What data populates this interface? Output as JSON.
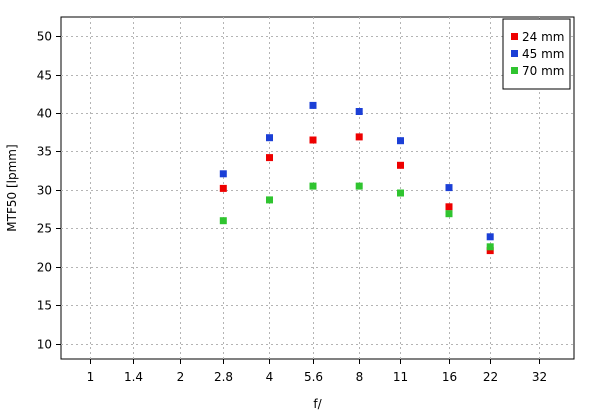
{
  "chart_data": {
    "type": "scatter",
    "title": "",
    "xlabel": "f/",
    "ylabel": "MTF50 [lpmm]",
    "x_scale": "log",
    "x_ticks": [
      "1",
      "1.4",
      "2",
      "2.8",
      "4",
      "5.6",
      "8",
      "11",
      "16",
      "22",
      "32"
    ],
    "x_tick_values": [
      1,
      1.4,
      2,
      2.8,
      4,
      5.6,
      8,
      11,
      16,
      22,
      32
    ],
    "xlim": [
      0.8,
      42
    ],
    "ylim": [
      8,
      52.5
    ],
    "y_ticks": [
      10,
      15,
      20,
      25,
      30,
      35,
      40,
      45,
      50
    ],
    "grid": true,
    "legend_position": "top-right",
    "categories": [
      "2.8",
      "4",
      "5.6",
      "8",
      "11",
      "16",
      "22"
    ],
    "x": [
      2.8,
      4,
      5.6,
      8,
      11,
      16,
      22
    ],
    "series": [
      {
        "name": "24 mm",
        "color": "#ee0000",
        "values": [
          30.2,
          34.2,
          36.5,
          36.9,
          33.2,
          27.8,
          22.1
        ]
      },
      {
        "name": "45 mm",
        "color": "#1b3fd6",
        "values": [
          32.1,
          36.8,
          41.0,
          40.2,
          36.4,
          30.3,
          23.9
        ]
      },
      {
        "name": "70 mm",
        "color": "#2fc42f",
        "values": [
          26.0,
          28.7,
          30.5,
          30.5,
          29.6,
          26.9,
          22.6
        ]
      }
    ]
  }
}
